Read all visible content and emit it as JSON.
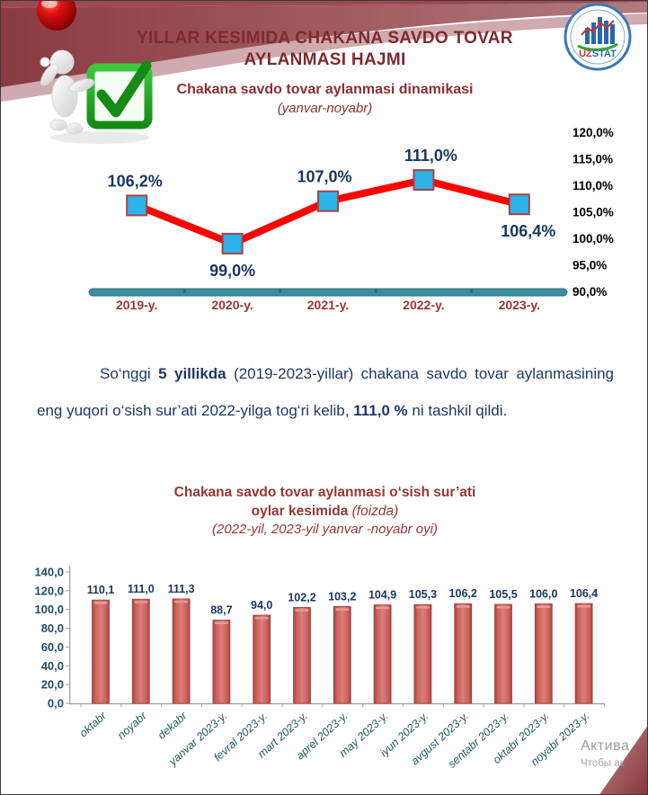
{
  "header": {
    "title_line1": "YILLAR KESIMIDA CHAKANA SAVDO TOVAR",
    "title_line2": "AYLANMASI HAJMI"
  },
  "logo": {
    "uz": "UZ",
    "stat": "STAT"
  },
  "chart_data": [
    {
      "type": "line",
      "title": "Chakana savdo tovar aylanmasi dinamikasi",
      "subtitle": "(yanvar-noyabr)",
      "categories": [
        "2019-y.",
        "2020-y.",
        "2021-y.",
        "2022-y.",
        "2023-y."
      ],
      "values": [
        106.2,
        99.0,
        107.0,
        111.0,
        106.4
      ],
      "point_labels": [
        "106,2%",
        "99,0%",
        "107,0%",
        "111,0%",
        "106,4%"
      ],
      "label_position": [
        "above",
        "below",
        "above",
        "above",
        "below"
      ],
      "y_tick_labels": [
        "120,0%",
        "115,0%",
        "110,0%",
        "105,0%",
        "100,0%",
        "95,0%",
        "90,0%"
      ],
      "ylim": [
        90,
        120
      ],
      "legend": "none",
      "grid": false,
      "colors": {
        "line": "#ff0000",
        "marker_fill": "#2db3ea",
        "marker_border": "#a34444",
        "axis_bar": "#3b8ea0",
        "category_label": "#953735",
        "point_label": "#17375e",
        "y_tick_label": "#000000"
      }
    },
    {
      "type": "bar",
      "title_line1": "Chakana savdo tovar aylanmasi o‘sish sur’ati",
      "title_line2_bold": "oylar kesimida",
      "title_line2_italic": " (foizda)",
      "title_line3": "(2022-yil, 2023-yil yanvar -noyabr oyi)",
      "categories": [
        "oktabr",
        "noyabr",
        "dekabr",
        "yanvar 2023-y.",
        "fevral 2023-y.",
        "mart 2023-y.",
        "aprel 2023-y.",
        "may 2023-y.",
        "iyun 2023-y.",
        "avgust 2023-y.",
        "sentabr 2023-y.",
        "oktabr 2023-y.",
        "noyabr 2023-y."
      ],
      "values": [
        110.1,
        111.0,
        111.3,
        88.7,
        94.0,
        102.2,
        103.2,
        104.9,
        105.3,
        106.2,
        105.5,
        106.0,
        106.4
      ],
      "bar_labels": [
        "110,1",
        "111,0",
        "111,3",
        "88,7",
        "94,0",
        "102,2",
        "103,2",
        "104,9",
        "105,3",
        "106,2",
        "105,5",
        "106,0",
        "106,4"
      ],
      "y_tick_labels": [
        "140,0",
        "120,0",
        "100,0",
        "80,0",
        "60,0",
        "40,0",
        "20,0",
        "0,0"
      ],
      "y_tick_values": [
        140,
        120,
        100,
        80,
        60,
        40,
        20,
        0
      ],
      "ylim": [
        0,
        140
      ],
      "legend": "none",
      "grid": false,
      "colors": {
        "bar_edge": "#9e403d",
        "bar_center": "#dd7d77",
        "bar_side": "#a84441",
        "bar_label": "#17375e",
        "y_tick_label": "#1f4e63",
        "category_label": "#215968",
        "axis": "#9aa0a6"
      }
    }
  ],
  "paragraph": {
    "p1": "So‘nggi ",
    "b1": "5 yillikda",
    "p2": " (2019-2023-yillar) chakana savdo tovar aylanmasining eng yuqori o‘sish sur’ati 2022-yilga tog‘ri kelib, ",
    "b2": "111,0 %",
    "p3": " ni tashkil qildi."
  },
  "watermark": {
    "line1": "Актива",
    "line2": "Чтобы ак"
  }
}
